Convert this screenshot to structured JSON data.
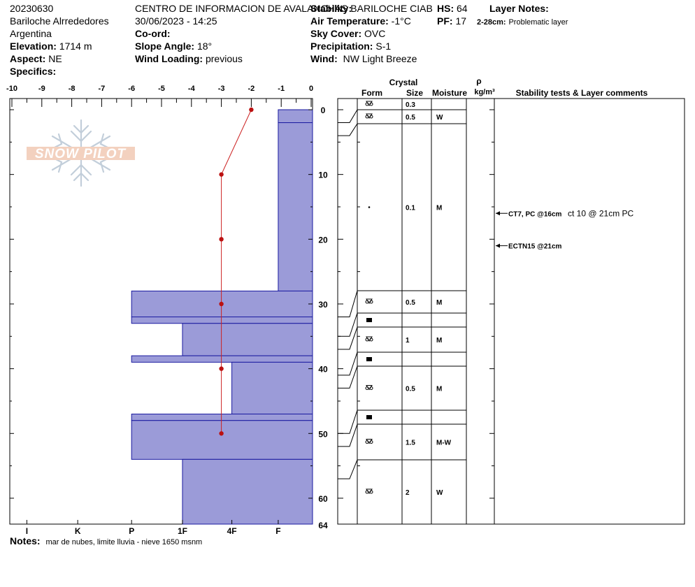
{
  "header": {
    "date": "20230630",
    "location": "Bariloche Alrrededores",
    "country": "Argentina",
    "elevation_label": "Elevation:",
    "elevation_value": "1714 m",
    "aspect_label": "Aspect:",
    "aspect_value": "NE",
    "specifics_label": "Specifics:",
    "org": "CENTRO DE INFORMACION DE AVALANCHAS BARILOCHE CIAB",
    "datetime": "30/06/2023 - 14:25",
    "coord_label": "Co-ord:",
    "slope_label": "Slope Angle:",
    "slope_value": "18°",
    "wind_loading_label": "Wind Loading:",
    "wind_loading_value": "previous",
    "stability_label": "Stability:",
    "air_temp_label": "Air Temperature:",
    "air_temp_value": "-1°C",
    "sky_label": "Sky Cover:",
    "sky_value": "OVC",
    "precip_label": "Precipitation:",
    "precip_value": "S-1",
    "wind_label": "Wind:",
    "wind_value": "NW Light Breeze",
    "hs_label": "HS:",
    "hs_value": "64",
    "pf_label": "PF:",
    "pf_value": "17",
    "layer_notes_label": "Layer Notes:",
    "layer_note_depth": "2-28cm:",
    "layer_note_text": "Problematic layer"
  },
  "notes": {
    "label": "Notes:",
    "text": "mar de nubes, limite lluvia - nieve 1650 msnm"
  },
  "logo_text": "SNOW PILOT",
  "colors": {
    "hardness_fill": "#9b9bd8",
    "hardness_stroke": "#1a1aa0",
    "temp_line": "#cc2222",
    "temp_point": "#bb1111"
  },
  "table": {
    "crystal_label": "Crystal",
    "form_label": "Form",
    "size_label": "Size",
    "moisture_label": "Moisture",
    "rho_label": "ρ",
    "density_label": "kg/m³",
    "stability_col_label": "Stability tests & Layer comments"
  },
  "chart_data": {
    "type": "snow-profile",
    "temp_axis": {
      "min": -10,
      "max": 0,
      "ticks": [
        "-10",
        "-9",
        "-8",
        "-7",
        "-6",
        "-5",
        "-4",
        "-3",
        "-2",
        "-1",
        "0"
      ]
    },
    "depth_axis": {
      "min": 0,
      "max": 64,
      "ticks": [
        "0",
        "10",
        "20",
        "30",
        "40",
        "50",
        "60"
      ],
      "bottom_label": "64"
    },
    "hardness_axis": {
      "ticks": [
        {
          "label": "I",
          "temp": -9.5
        },
        {
          "label": "K",
          "temp": -7.8
        },
        {
          "label": "P",
          "temp": -6.0
        },
        {
          "label": "1F",
          "temp": -4.3
        },
        {
          "label": "4F",
          "temp": -2.65
        },
        {
          "label": "F",
          "temp": -1.1
        }
      ]
    },
    "temperature_profile": [
      {
        "depth": 0,
        "temp": -2.0
      },
      {
        "depth": 10,
        "temp": -3.0
      },
      {
        "depth": 20,
        "temp": -3.0
      },
      {
        "depth": 30,
        "temp": -3.0
      },
      {
        "depth": 40,
        "temp": -3.0
      },
      {
        "depth": 50,
        "temp": -3.0
      }
    ],
    "hardness_layers": [
      {
        "top": 0,
        "bottom": 2,
        "temp": -1.1
      },
      {
        "top": 2,
        "bottom": 28,
        "temp": -1.1
      },
      {
        "top": 28,
        "bottom": 32,
        "temp": -6.0
      },
      {
        "top": 32,
        "bottom": 33,
        "temp": -6.0
      },
      {
        "top": 33,
        "bottom": 38,
        "temp": -4.3
      },
      {
        "top": 38,
        "bottom": 39,
        "temp": -6.0
      },
      {
        "top": 39,
        "bottom": 47,
        "temp": -2.65
      },
      {
        "top": 47,
        "bottom": 48,
        "temp": -6.0
      },
      {
        "top": 48,
        "bottom": 54,
        "temp": -6.0
      },
      {
        "top": 54,
        "bottom": 64,
        "temp": -4.3
      }
    ],
    "layers": [
      {
        "top": 0,
        "bottom": 2,
        "form": "faceted-rounded",
        "size": "0.3",
        "moisture": ""
      },
      {
        "top": 2,
        "bottom": 4,
        "form": "faceted-rounded",
        "size": "0.5",
        "moisture": "W"
      },
      {
        "top": 4,
        "bottom": 32,
        "form": "precip-particles",
        "size": "0.1",
        "moisture": "M"
      },
      {
        "top": 32,
        "bottom": 35,
        "form": "faceted-rounded",
        "size": "0.5",
        "moisture": "M"
      },
      {
        "top": 35,
        "bottom": 37,
        "form": "ice-crust",
        "size": "",
        "moisture": ""
      },
      {
        "top": 37,
        "bottom": 41,
        "form": "faceted-rounded",
        "size": "1",
        "moisture": "M"
      },
      {
        "top": 41,
        "bottom": 43,
        "form": "ice-crust",
        "size": "",
        "moisture": ""
      },
      {
        "top": 43,
        "bottom": 50,
        "form": "faceted-rounded",
        "size": "0.5",
        "moisture": "M"
      },
      {
        "top": 50,
        "bottom": 52,
        "form": "ice-crust",
        "size": "",
        "moisture": ""
      },
      {
        "top": 52,
        "bottom": 57,
        "form": "faceted-rounded",
        "size": "1.5",
        "moisture": "M-W"
      },
      {
        "top": 57,
        "bottom": 64,
        "form": "faceted-rounded",
        "size": "2",
        "moisture": "W"
      }
    ],
    "stability_tests": [
      {
        "depth": 16,
        "text": "CT7, PC @16cm",
        "comment": "ct 10 @ 21cm PC"
      },
      {
        "depth": 21,
        "text": "ECTN15 @21cm",
        "comment": ""
      }
    ]
  }
}
